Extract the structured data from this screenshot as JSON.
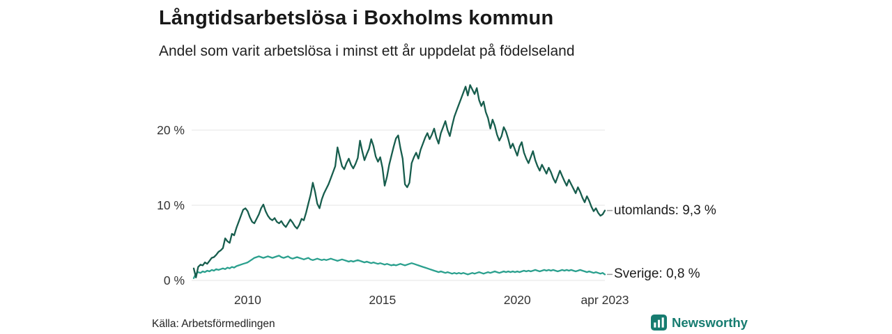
{
  "header": {
    "title": "Långtidsarbetslösa i Boxholms kommun",
    "subtitle": "Andel som varit arbetslösa i minst ett år uppdelat på födelseland"
  },
  "footer": {
    "source": "Källa: Arbetsförmedlingen",
    "brand": "Newsworthy",
    "brand_color": "#177c70"
  },
  "chart_data": {
    "type": "line",
    "title": "Långtidsarbetslösa i Boxholms kommun",
    "subtitle": "Andel som varit arbetslösa i minst ett år uppdelat på födelseland",
    "xlabel": "",
    "ylabel": "",
    "x_range": [
      2008.0,
      2023.25
    ],
    "ylim": [
      0,
      27
    ],
    "grid": "horizontal",
    "legend_position": "right-end-labels",
    "y_ticks": [
      {
        "value": 0,
        "label": "0 %"
      },
      {
        "value": 10,
        "label": "10 %"
      },
      {
        "value": 20,
        "label": "20 %"
      }
    ],
    "x_ticks": [
      {
        "value": 2010,
        "label": "2010"
      },
      {
        "value": 2015,
        "label": "2015"
      },
      {
        "value": 2020,
        "label": "2020"
      },
      {
        "value": 2023.25,
        "label": "apr 2023"
      }
    ],
    "series": [
      {
        "name": "utomlands",
        "end_label": "utomlands: 9,3 %",
        "last_value": 9.3,
        "color": "#175d4d",
        "values": [
          1.6,
          0.4,
          1.8,
          2.1,
          2.0,
          2.4,
          2.2,
          2.6,
          3.0,
          3.1,
          3.4,
          3.8,
          4.0,
          4.3,
          5.6,
          5.2,
          5.0,
          6.2,
          6.0,
          7.0,
          7.8,
          8.6,
          9.4,
          9.6,
          9.2,
          8.4,
          7.8,
          7.6,
          8.2,
          8.8,
          9.6,
          10.1,
          9.2,
          8.6,
          8.2,
          8.0,
          8.3,
          7.8,
          7.6,
          7.9,
          7.4,
          7.1,
          7.6,
          8.1,
          7.7,
          7.2,
          6.9,
          7.4,
          8.2,
          8.0,
          9.0,
          10.2,
          11.4,
          13.0,
          11.8,
          10.2,
          9.6,
          10.8,
          11.6,
          12.2,
          12.8,
          13.6,
          14.4,
          15.2,
          17.7,
          16.4,
          15.2,
          14.8,
          15.6,
          16.2,
          15.4,
          14.9,
          15.5,
          16.3,
          18.6,
          17.2,
          16.0,
          16.8,
          17.5,
          18.8,
          17.9,
          16.5,
          15.8,
          16.4,
          15.0,
          12.6,
          13.8,
          15.4,
          16.6,
          17.8,
          18.9,
          19.3,
          17.6,
          16.2,
          12.8,
          12.4,
          13.0,
          15.6,
          16.4,
          17.0,
          16.2,
          17.4,
          18.2,
          19.0,
          19.6,
          18.8,
          19.4,
          20.2,
          19.0,
          18.2,
          19.6,
          20.4,
          21.2,
          20.0,
          19.2,
          20.6,
          21.8,
          22.6,
          23.4,
          24.2,
          25.0,
          25.8,
          24.6,
          26.0,
          25.4,
          24.8,
          25.6,
          24.0,
          23.2,
          23.8,
          22.4,
          21.6,
          20.2,
          21.4,
          20.6,
          19.4,
          18.6,
          19.2,
          20.4,
          19.8,
          18.8,
          17.6,
          18.2,
          17.4,
          16.6,
          17.8,
          18.4,
          17.0,
          16.2,
          15.6,
          16.4,
          17.2,
          16.0,
          15.2,
          14.6,
          15.4,
          14.8,
          14.2,
          15.0,
          14.4,
          13.6,
          13.0,
          13.8,
          14.6,
          13.9,
          13.2,
          12.6,
          13.4,
          12.8,
          12.2,
          11.6,
          12.4,
          11.8,
          11.0,
          10.4,
          11.2,
          10.6,
          9.8,
          9.2,
          9.6,
          9.0,
          8.6,
          8.8,
          9.3
        ]
      },
      {
        "name": "Sverige",
        "end_label": "Sverige: 0,8 %",
        "last_value": 0.8,
        "color": "#2ba08e",
        "values": [
          0.3,
          0.9,
          1.1,
          1.0,
          1.2,
          1.1,
          1.3,
          1.2,
          1.4,
          1.3,
          1.5,
          1.4,
          1.5,
          1.6,
          1.5,
          1.7,
          1.6,
          1.8,
          1.7,
          1.9,
          2.0,
          2.1,
          2.2,
          2.3,
          2.4,
          2.6,
          2.8,
          3.0,
          3.1,
          3.2,
          3.1,
          3.0,
          3.1,
          3.2,
          3.1,
          3.0,
          3.1,
          3.2,
          3.3,
          3.1,
          3.0,
          3.1,
          3.2,
          3.0,
          2.9,
          3.0,
          3.1,
          3.0,
          2.9,
          2.8,
          2.9,
          3.0,
          2.8,
          2.7,
          2.8,
          2.9,
          2.8,
          2.7,
          2.8,
          2.7,
          2.8,
          2.9,
          2.8,
          2.7,
          2.6,
          2.7,
          2.8,
          2.7,
          2.6,
          2.5,
          2.6,
          2.5,
          2.6,
          2.7,
          2.6,
          2.5,
          2.4,
          2.5,
          2.4,
          2.3,
          2.4,
          2.3,
          2.2,
          2.3,
          2.2,
          2.1,
          2.2,
          2.1,
          2.0,
          2.1,
          2.0,
          2.1,
          2.2,
          2.1,
          2.0,
          2.1,
          2.2,
          2.3,
          2.2,
          2.1,
          2.0,
          1.9,
          1.8,
          1.7,
          1.6,
          1.5,
          1.4,
          1.3,
          1.2,
          1.1,
          1.2,
          1.1,
          1.0,
          1.1,
          1.0,
          0.9,
          1.0,
          0.9,
          1.0,
          0.9,
          1.0,
          0.9,
          0.8,
          0.9,
          1.0,
          0.9,
          1.0,
          1.1,
          1.0,
          0.9,
          1.0,
          1.1,
          1.0,
          1.1,
          1.2,
          1.1,
          1.0,
          1.1,
          1.2,
          1.1,
          1.2,
          1.1,
          1.2,
          1.1,
          1.2,
          1.1,
          1.2,
          1.3,
          1.2,
          1.3,
          1.2,
          1.3,
          1.4,
          1.3,
          1.2,
          1.3,
          1.4,
          1.3,
          1.4,
          1.3,
          1.4,
          1.3,
          1.2,
          1.3,
          1.4,
          1.3,
          1.4,
          1.3,
          1.4,
          1.3,
          1.2,
          1.3,
          1.4,
          1.3,
          1.2,
          1.1,
          1.2,
          1.1,
          1.0,
          1.1,
          1.0,
          0.9,
          1.0,
          0.8
        ]
      }
    ]
  }
}
